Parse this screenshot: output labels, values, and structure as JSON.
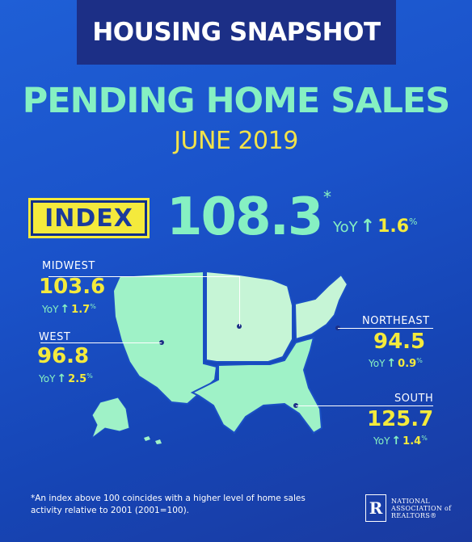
{
  "header": {
    "title": "HOUSING SNAPSHOT"
  },
  "main_title": "PENDING HOME SALES",
  "subtitle": "JUNE 2019",
  "index": {
    "badge_label": "INDEX",
    "value": "108.3",
    "asterisk": "*",
    "yoy_label": "YoY",
    "yoy_value": "1.6",
    "yoy_unit": "%"
  },
  "regions": {
    "midwest": {
      "name": "MIDWEST",
      "value": "103.6",
      "yoy_label": "YoY",
      "yoy_value": "1.7",
      "yoy_unit": "%"
    },
    "west": {
      "name": "WEST",
      "value": "96.8",
      "yoy_label": "YoY",
      "yoy_value": "2.5",
      "yoy_unit": "%"
    },
    "northeast": {
      "name": "NORTHEAST",
      "value": "94.5",
      "yoy_label": "YoY",
      "yoy_value": "0.9",
      "yoy_unit": "%"
    },
    "south": {
      "name": "SOUTH",
      "value": "125.7",
      "yoy_label": "YoY",
      "yoy_value": "1.4",
      "yoy_unit": "%"
    }
  },
  "footnote": "*An index above 100 coincides with a higher level of home sales activity relative to 2001 (2001=100).",
  "logo": {
    "mark": "R",
    "line1": "NATIONAL",
    "line2": "ASSOCIATION of",
    "line3": "REALTORS®"
  },
  "colors": {
    "background": "#1f5fd6",
    "header_bar": "#1c2f86",
    "mint": "#86f0c2",
    "yellow": "#f4ea3c",
    "map_fill": "#9ff2c7",
    "map_light": "#c6f5d6"
  },
  "icons": {
    "up_arrow": "up-arrow-icon"
  }
}
